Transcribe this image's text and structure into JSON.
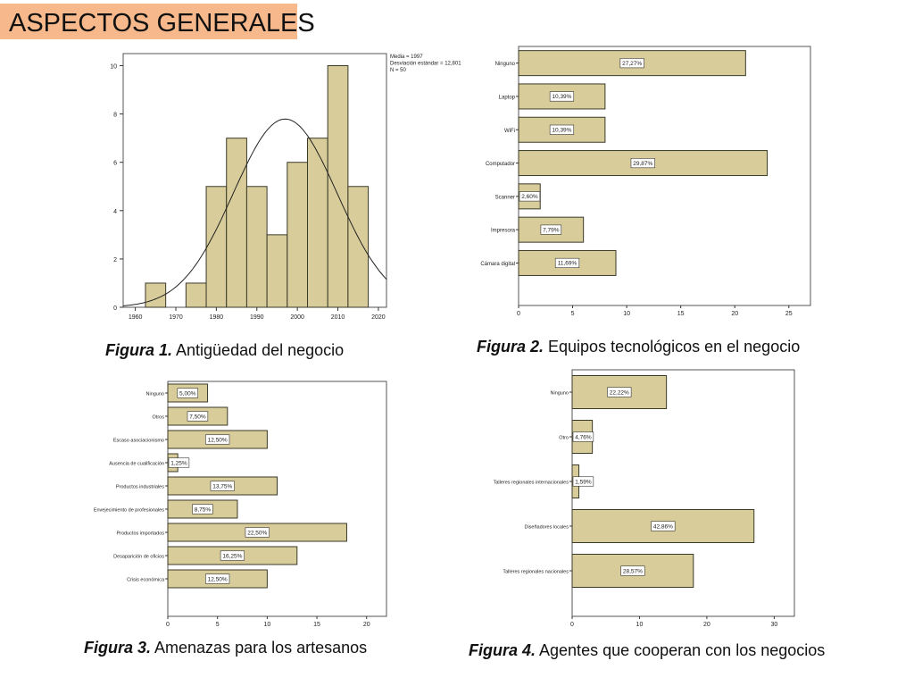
{
  "slide": {
    "title": "ASPECTOS GENERALES"
  },
  "colors": {
    "bar_fill": "#d8cc9a",
    "bar_stroke": "#3a3a2a",
    "title_bg": "#f7b98c"
  },
  "captions": [
    {
      "label": "Figura 1.",
      "text": " Antigüedad del negocio"
    },
    {
      "label": "Figura 2.",
      "text": " Equipos tecnológicos en el negocio"
    },
    {
      "label": "Figura 3.",
      "text": " Amenazas para los artesanos"
    },
    {
      "label": "Figura 4.",
      "text": " Agentes que cooperan con los negocios"
    }
  ],
  "chart_data": [
    {
      "type": "histogram",
      "bins": [
        {
          "x0": 1962.5,
          "x1": 1967.5,
          "count": 1
        },
        {
          "x0": 1967.5,
          "x1": 1972.5,
          "count": 0
        },
        {
          "x0": 1972.5,
          "x1": 1977.5,
          "count": 1
        },
        {
          "x0": 1977.5,
          "x1": 1982.5,
          "count": 5
        },
        {
          "x0": 1982.5,
          "x1": 1987.5,
          "count": 7
        },
        {
          "x0": 1987.5,
          "x1": 1992.5,
          "count": 5
        },
        {
          "x0": 1992.5,
          "x1": 1997.5,
          "count": 3
        },
        {
          "x0": 1997.5,
          "x1": 2002.5,
          "count": 6
        },
        {
          "x0": 2002.5,
          "x1": 2007.5,
          "count": 7
        },
        {
          "x0": 2007.5,
          "x1": 2012.5,
          "count": 10
        },
        {
          "x0": 2012.5,
          "x1": 2017.5,
          "count": 5
        }
      ],
      "xlim": [
        1957,
        2022
      ],
      "ylim": [
        0,
        10.5
      ],
      "xticks": [
        1960,
        1970,
        1980,
        1990,
        2000,
        2010,
        2020
      ],
      "yticks": [
        0,
        2,
        4,
        6,
        8,
        10
      ],
      "normal_curve": {
        "mean": 1997,
        "sd": 12.801,
        "n": 50,
        "bin_width": 5
      },
      "stats_text": [
        "Media = 1997",
        "Desviación estándar = 12,801",
        "N = 50"
      ]
    },
    {
      "type": "bar",
      "orientation": "horizontal",
      "categories": [
        "Ninguno",
        "Laptop",
        "WiFi",
        "Computador",
        "Scanner",
        "Impresora",
        "Cámara digital"
      ],
      "values": [
        21,
        8,
        8,
        23,
        2,
        6,
        9
      ],
      "labels": [
        "27,27%",
        "10,39%",
        "10,39%",
        "29,87%",
        "2,60%",
        "7,79%",
        "11,69%"
      ],
      "xlim": [
        0,
        27
      ],
      "xticks": [
        0,
        5,
        10,
        15,
        20,
        25
      ]
    },
    {
      "type": "bar",
      "orientation": "horizontal",
      "categories": [
        "Ninguno",
        "Otros",
        "Escaso asociacionismo",
        "Ausencia de cualificación",
        "Productos industriales",
        "Envejecimiento de profesionales",
        "Productos importados",
        "Desaparición de oficios",
        "Crisis económica"
      ],
      "values": [
        4,
        6,
        10,
        1,
        11,
        7,
        18,
        13,
        10
      ],
      "labels": [
        "5,00%",
        "7,50%",
        "12,50%",
        "1,25%",
        "13,75%",
        "8,75%",
        "22,50%",
        "16,25%",
        "12,50%"
      ],
      "xlim": [
        0,
        22
      ],
      "xticks": [
        0,
        5,
        10,
        15,
        20
      ]
    },
    {
      "type": "bar",
      "orientation": "horizontal",
      "categories": [
        "Ninguno",
        "Otro",
        "Talleres regionales internacionales",
        "Diseñadores locales",
        "Talleres regionales nacionales"
      ],
      "values": [
        14,
        3,
        1,
        27,
        18
      ],
      "labels": [
        "22,22%",
        "4,76%",
        "1,59%",
        "42,86%",
        "28,57%"
      ],
      "xlim": [
        0,
        33
      ],
      "xticks": [
        0,
        10,
        20,
        30
      ]
    }
  ]
}
